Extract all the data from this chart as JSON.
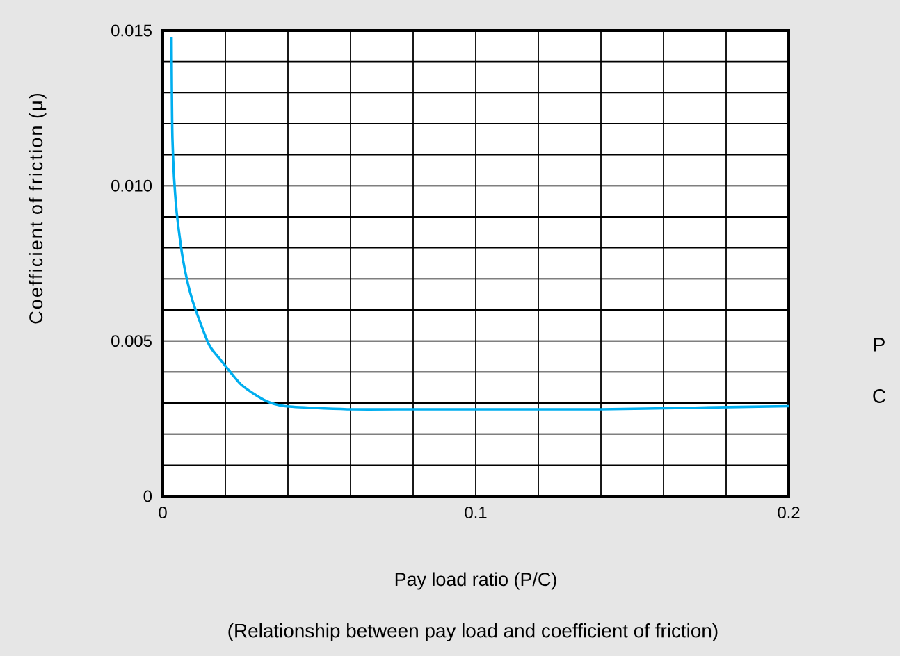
{
  "chart_data": {
    "type": "line",
    "xlabel": "Pay load ratio (P/C)",
    "ylabel": "Coefficient of friction (μ)",
    "annotations": [
      "P",
      "C",
      "(Relationship between pay load and coefficient of friction)"
    ],
    "x": [
      0.0028,
      0.0031,
      0.0043,
      0.0065,
      0.0095,
      0.0147,
      0.0184,
      0.025,
      0.0324,
      0.0391,
      0.059,
      0.08,
      0.1,
      0.14,
      0.17,
      0.2
    ],
    "series": [
      {
        "color": "#00aeef",
        "values": [
          0.0148,
          0.0115,
          0.0093,
          0.0076,
          0.0063,
          0.0049,
          0.0044,
          0.0036,
          0.0031,
          0.0029,
          0.0028,
          0.0028,
          0.0028,
          0.0028,
          0.00285,
          0.0029
        ]
      }
    ],
    "xlim": [
      0,
      0.2
    ],
    "ylim": [
      0,
      0.015
    ],
    "xticks": [
      0,
      {
        "value": 0.02,
        "label": null
      },
      {
        "value": 0.04,
        "label": null
      },
      {
        "value": 0.06,
        "label": null
      },
      {
        "value": 0.08,
        "label": null
      },
      0.1,
      {
        "value": 0.12,
        "label": null
      },
      {
        "value": 0.14,
        "label": null
      },
      {
        "value": 0.16,
        "label": null
      },
      {
        "value": 0.18,
        "label": null
      },
      0.2
    ],
    "yticks": [
      0,
      {
        "value": 0.001,
        "label": null
      },
      {
        "value": 0.002,
        "label": null
      },
      {
        "value": 0.003,
        "label": null
      },
      {
        "value": 0.004,
        "label": null
      },
      0.005,
      {
        "value": 0.006,
        "label": null
      },
      {
        "value": 0.007,
        "label": null
      },
      {
        "value": 0.008,
        "label": null
      },
      {
        "value": 0.009,
        "label": null
      },
      {
        "value": 0.01,
        "label": "0.010"
      },
      {
        "value": 0.011,
        "label": null
      },
      {
        "value": 0.012,
        "label": null
      },
      {
        "value": 0.013,
        "label": null
      },
      {
        "value": 0.014,
        "label": null
      },
      0.015
    ],
    "grid": true,
    "marker": "none",
    "line_style": "solid"
  }
}
